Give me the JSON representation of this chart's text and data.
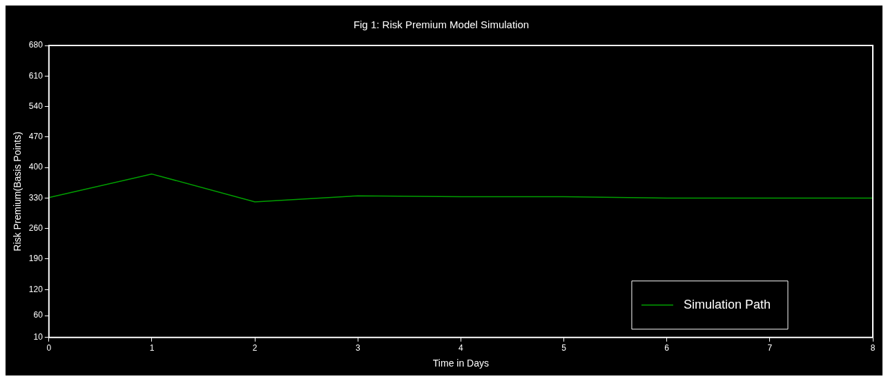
{
  "chart_data": {
    "type": "line",
    "title": "Fig 1: Risk Premium Model Simulation",
    "xlabel": "Time in Days",
    "ylabel": "Risk Premium(Basis Points)",
    "x": [
      0,
      1,
      2,
      3,
      4,
      5,
      6,
      7,
      8
    ],
    "series": [
      {
        "name": "Simulation Path",
        "color": "#00a000",
        "values": [
          331,
          385,
          321,
          335,
          333,
          333,
          330,
          330,
          330
        ]
      }
    ],
    "xlim": [
      0,
      8
    ],
    "xticks": [
      0,
      1,
      2,
      3,
      4,
      5,
      6,
      7,
      8
    ],
    "ylim": [
      10,
      680
    ],
    "yticks": [
      10,
      60,
      120,
      190,
      260,
      330,
      400,
      470,
      540,
      610,
      680
    ],
    "grid": false,
    "legend": "bottom right",
    "marker": "none",
    "line_style": "solid"
  }
}
